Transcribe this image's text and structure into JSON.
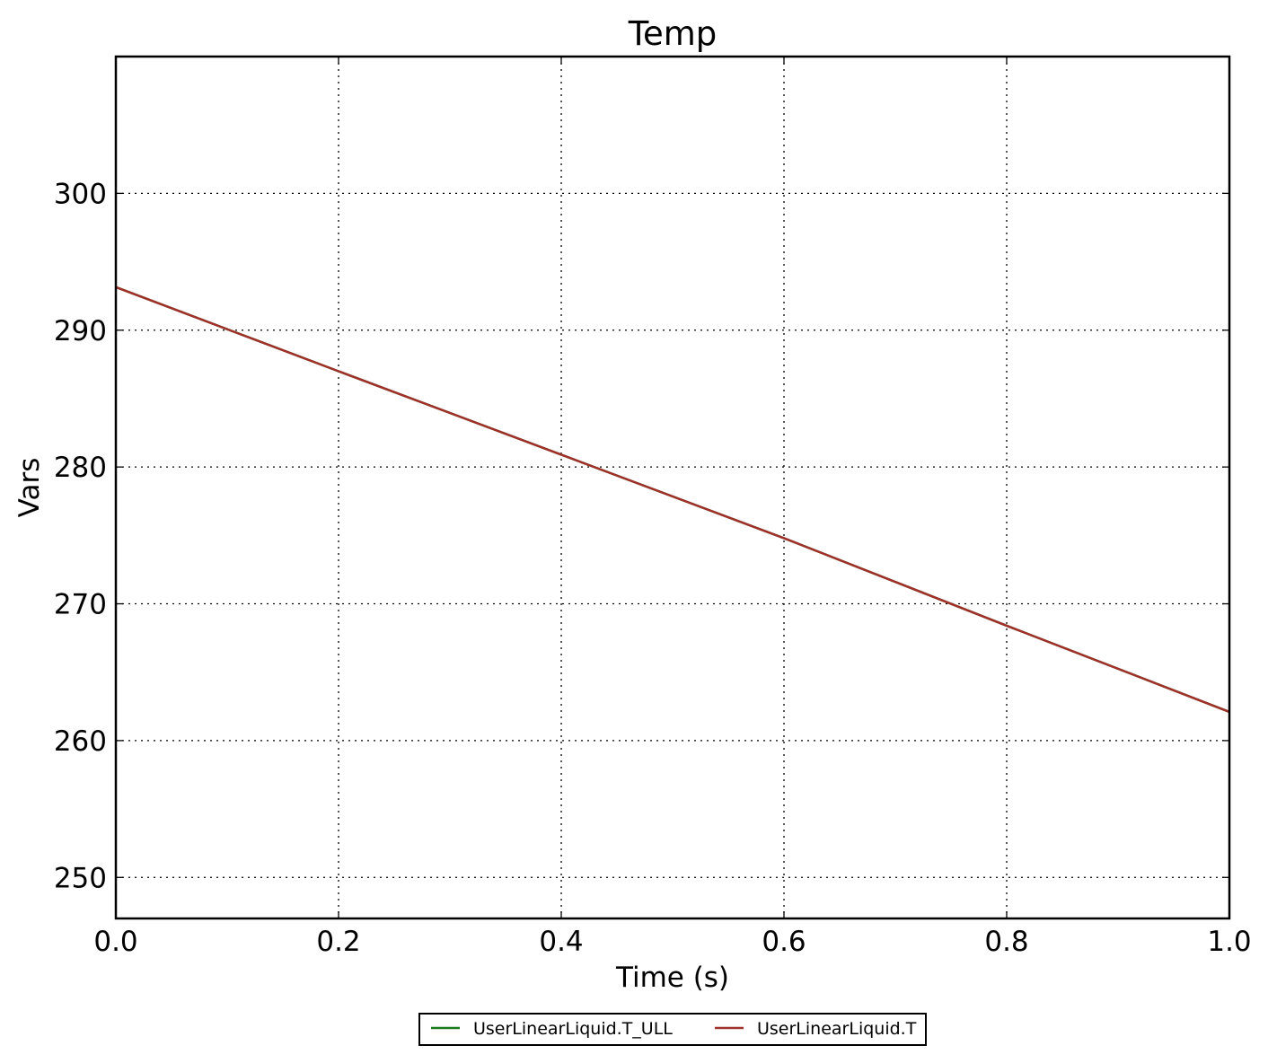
{
  "chart_data": {
    "type": "line",
    "title": "Temp",
    "xlabel": "Time (s)",
    "ylabel": "Vars",
    "xlim": [
      0.0,
      1.0
    ],
    "ylim": [
      247,
      310
    ],
    "xticks": [
      0.0,
      0.2,
      0.4,
      0.6,
      0.8,
      1.0
    ],
    "xtick_labels": [
      "0.0",
      "0.2",
      "0.4",
      "0.6",
      "0.8",
      "1.0"
    ],
    "yticks": [
      250,
      260,
      270,
      280,
      290,
      300
    ],
    "ytick_labels": [
      "250",
      "260",
      "270",
      "280",
      "290",
      "300"
    ],
    "grid": true,
    "legend_position": "bottom-center, below plot",
    "series": [
      {
        "name": "UserLinearLiquid.T_ULL",
        "color": "#1a7a1a",
        "x": [
          0.0,
          0.2,
          0.4,
          0.6,
          0.8,
          1.0
        ],
        "y": [
          293.15,
          287.0,
          280.9,
          274.8,
          268.4,
          262.1
        ]
      },
      {
        "name": "UserLinearLiquid.T",
        "color": "#a0302a",
        "x": [
          0.0,
          0.2,
          0.4,
          0.6,
          0.8,
          1.0
        ],
        "y": [
          293.15,
          287.0,
          280.9,
          274.8,
          268.4,
          262.1
        ]
      }
    ]
  }
}
